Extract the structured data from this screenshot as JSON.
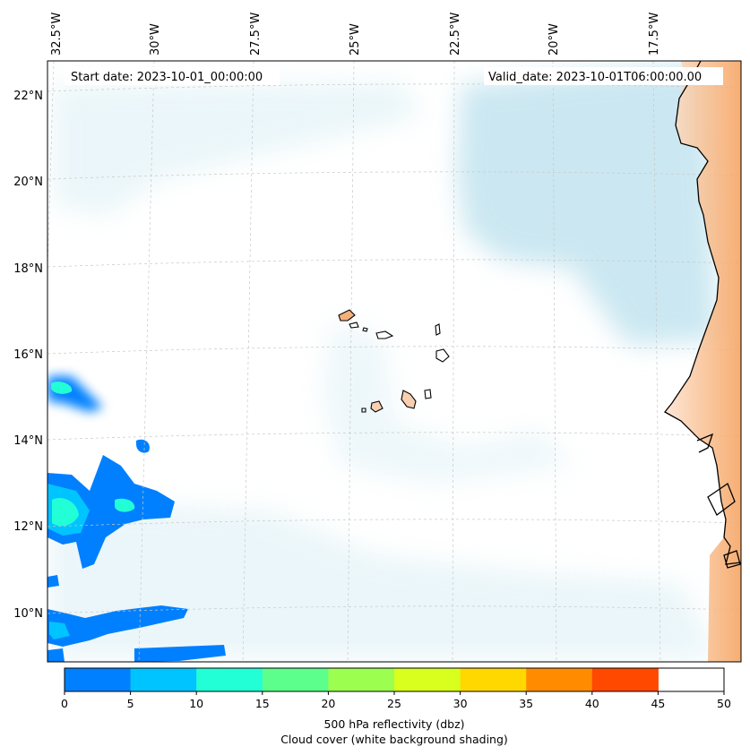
{
  "annotations": {
    "start_date": "Start date: 2023-10-01_00:00:00",
    "valid_date": "Valid_date: 2023-10-01T06:00:00.00"
  },
  "lon_labels": [
    "32.5°W",
    "30°W",
    "27.5°W",
    "25°W",
    "22.5°W",
    "20°W",
    "17.5°W"
  ],
  "lat_labels": [
    "22°N",
    "20°N",
    "18°N",
    "16°N",
    "14°N",
    "12°N",
    "10°N"
  ],
  "colorbar": {
    "label_line1": "500 hPa reflectivity (dbz)",
    "label_line2": "Cloud cover (white background shading)",
    "ticks": [
      "0",
      "5",
      "10",
      "15",
      "20",
      "25",
      "30",
      "35",
      "40",
      "45",
      "50"
    ],
    "colors": [
      "#0080ff",
      "#00c4ff",
      "#22ffd6",
      "#5cff8c",
      "#9cff50",
      "#d8ff1e",
      "#ffd800",
      "#ff8c00",
      "#ff4800"
    ]
  },
  "colors": {
    "cloud": "#a8d8e8",
    "land": "#f5a05a",
    "island_fill": "#f8cfb0"
  }
}
